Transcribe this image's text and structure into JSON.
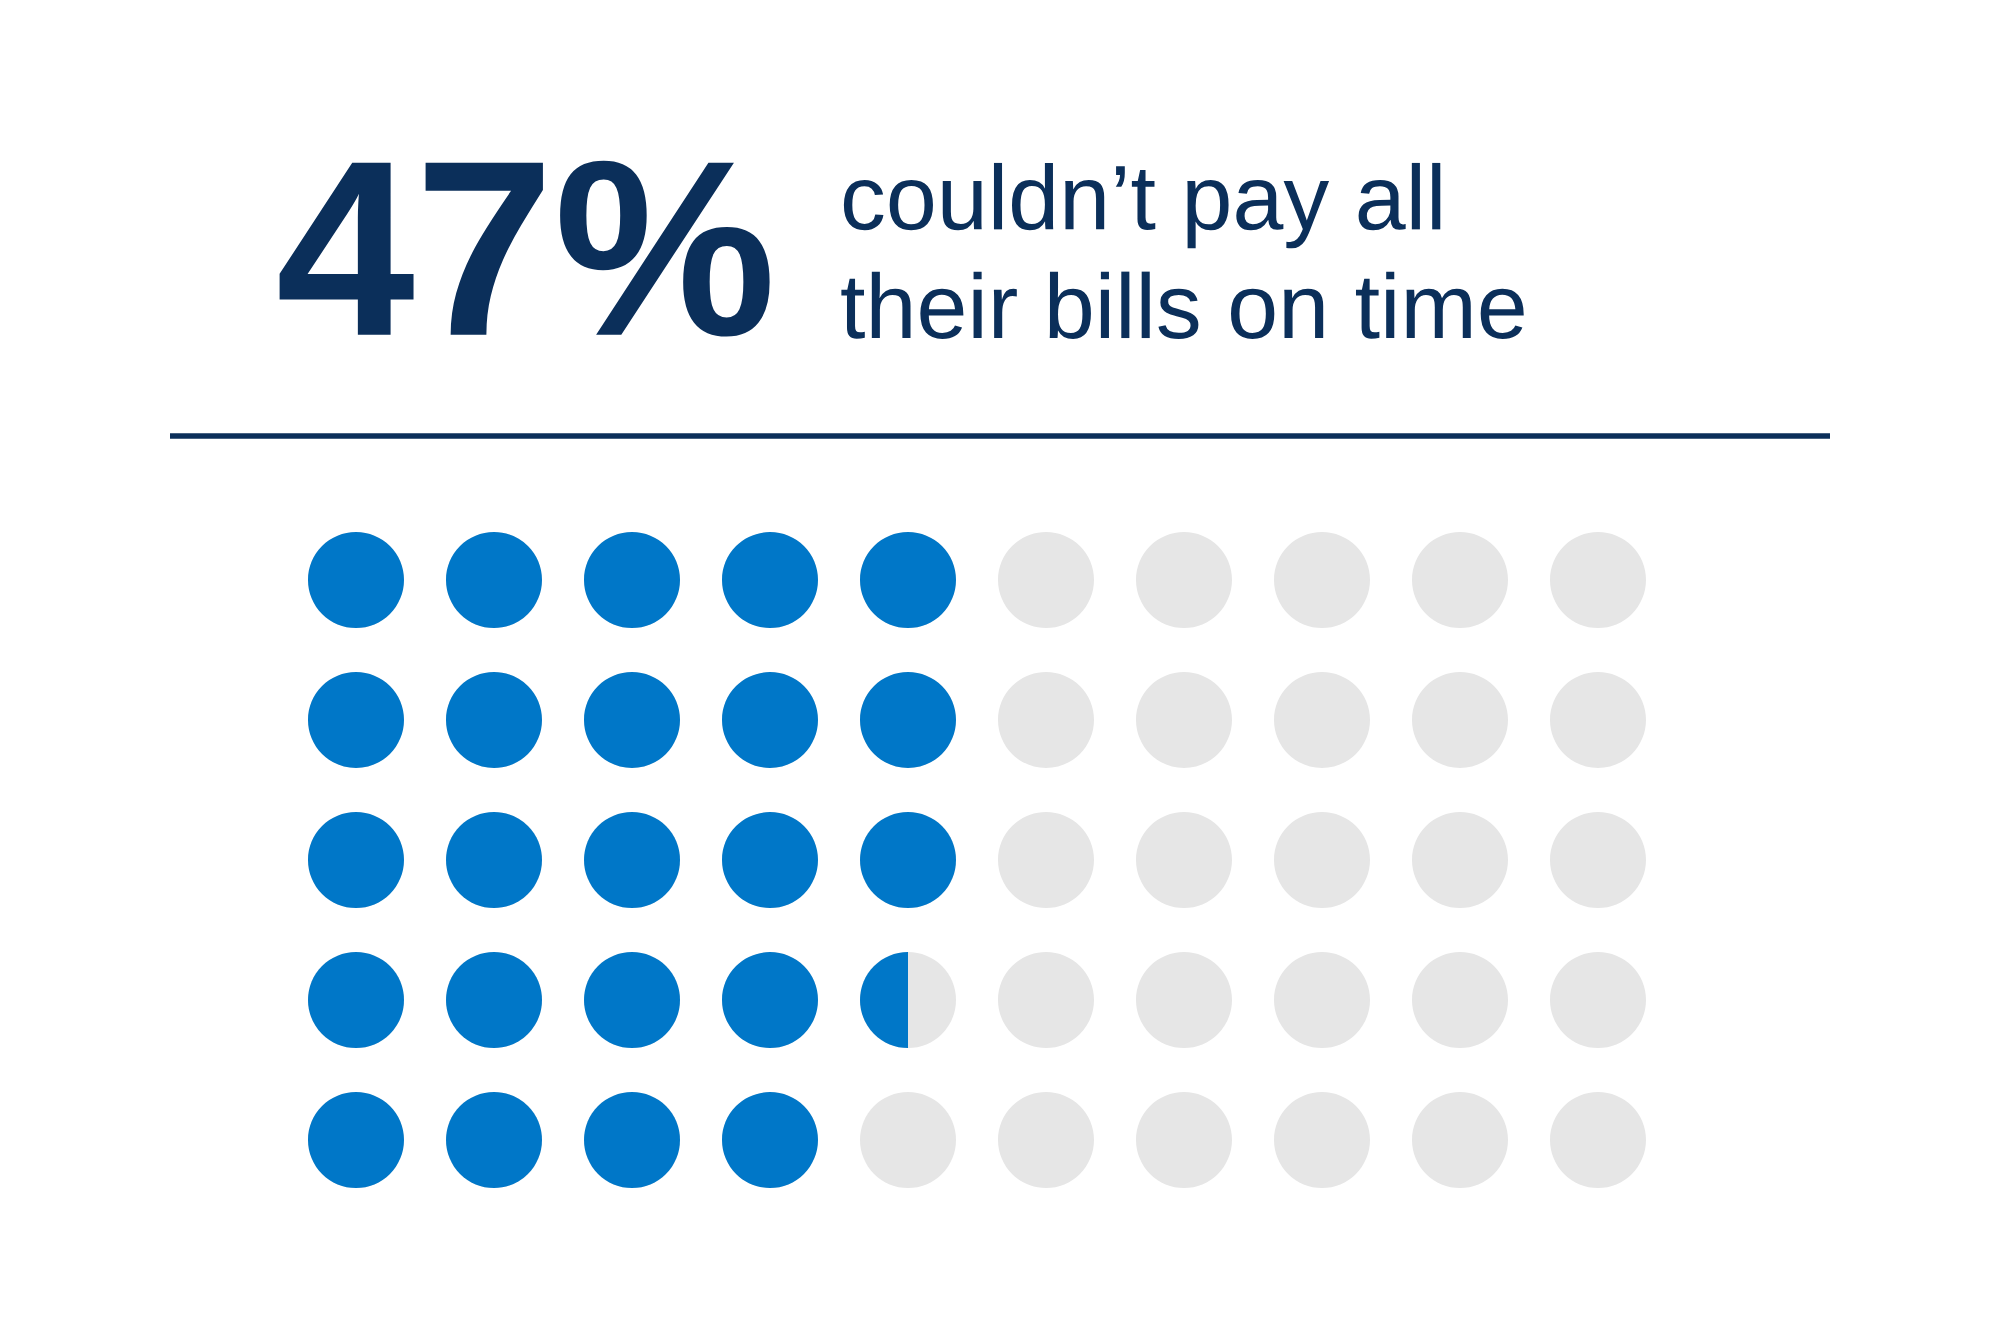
{
  "chart_data": {
    "type": "other",
    "values": [
      47
    ],
    "value_labels": [
      "47%"
    ],
    "title": "couldn’t pay all\ntheir bills on time",
    "color": "#0077c8"
  }
}
